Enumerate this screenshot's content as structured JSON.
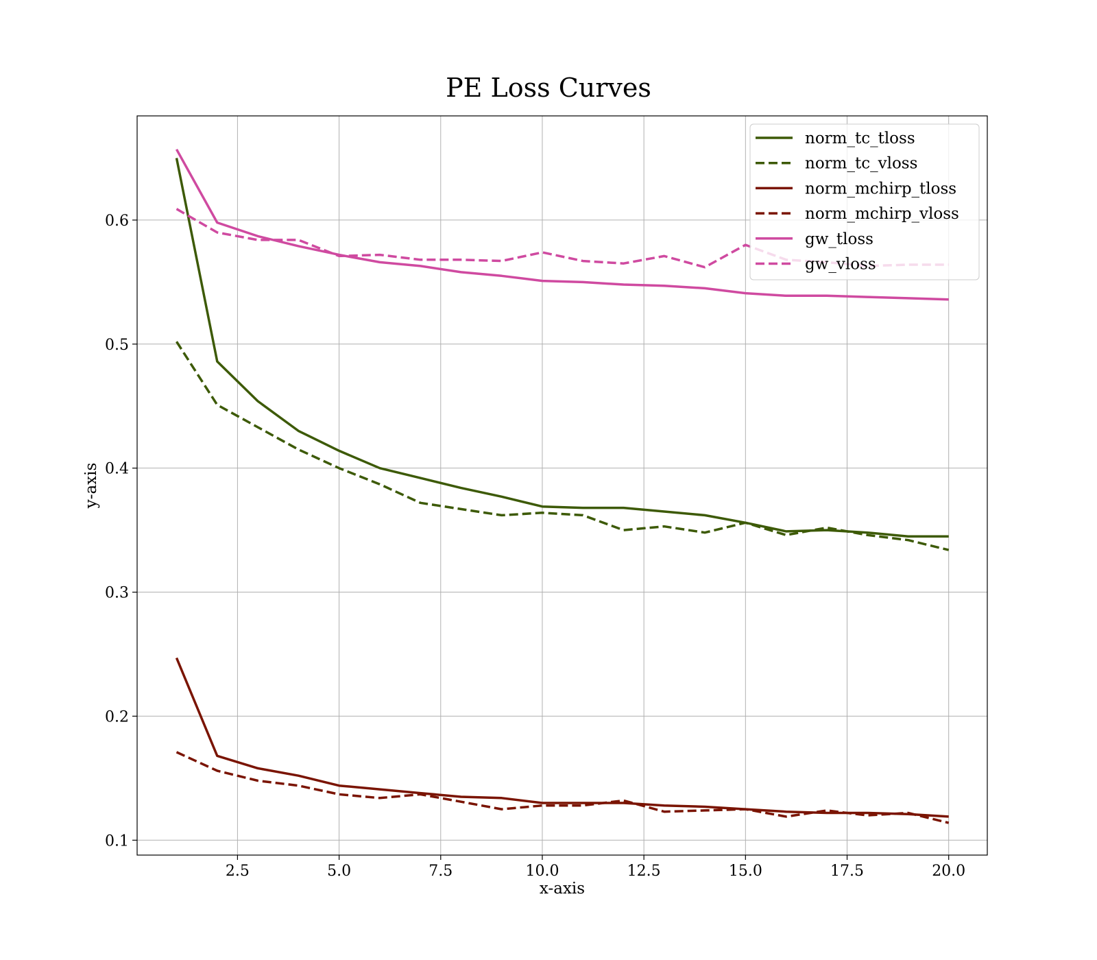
{
  "chart_data": {
    "type": "line",
    "title": "PE Loss Curves",
    "xlabel": "x-axis",
    "ylabel": "y-axis",
    "xlim": [
      0.03,
      20.95
    ],
    "ylim": [
      0.088,
      0.684
    ],
    "xticks": [
      2.5,
      5.0,
      7.5,
      10.0,
      12.5,
      15.0,
      17.5,
      20.0
    ],
    "xtick_labels": [
      "2.5",
      "5.0",
      "7.5",
      "10.0",
      "12.5",
      "15.0",
      "17.5",
      "20.0"
    ],
    "yticks": [
      0.1,
      0.2,
      0.3,
      0.4,
      0.5,
      0.6
    ],
    "ytick_labels": [
      "0.1",
      "0.2",
      "0.3",
      "0.4",
      "0.5",
      "0.6"
    ],
    "grid": true,
    "legend_position": "top-right",
    "x": [
      1,
      2,
      3,
      4,
      5,
      6,
      7,
      8,
      9,
      10,
      11,
      12,
      13,
      14,
      15,
      16,
      17,
      18,
      19,
      20
    ],
    "series": [
      {
        "name": "norm_tc_tloss",
        "color": "#3d5a07",
        "style": "solid",
        "values": [
          0.65,
          0.486,
          0.454,
          0.43,
          0.414,
          0.4,
          0.392,
          0.384,
          0.377,
          0.369,
          0.368,
          0.368,
          0.365,
          0.362,
          0.356,
          0.349,
          0.35,
          0.348,
          0.345,
          0.345
        ]
      },
      {
        "name": "norm_tc_vloss",
        "color": "#3d5a07",
        "style": "dashed",
        "values": [
          0.502,
          0.451,
          0.433,
          0.415,
          0.4,
          0.387,
          0.372,
          0.367,
          0.362,
          0.364,
          0.362,
          0.35,
          0.353,
          0.348,
          0.356,
          0.346,
          0.352,
          0.346,
          0.342,
          0.334
        ]
      },
      {
        "name": "norm_mchirp_tloss",
        "color": "#7a1402",
        "style": "solid",
        "values": [
          0.247,
          0.168,
          0.158,
          0.152,
          0.144,
          0.141,
          0.138,
          0.135,
          0.134,
          0.13,
          0.13,
          0.13,
          0.128,
          0.127,
          0.125,
          0.123,
          0.122,
          0.122,
          0.121,
          0.119
        ]
      },
      {
        "name": "norm_mchirp_vloss",
        "color": "#7a1402",
        "style": "dashed",
        "values": [
          0.171,
          0.156,
          0.148,
          0.144,
          0.137,
          0.134,
          0.137,
          0.131,
          0.125,
          0.128,
          0.128,
          0.132,
          0.123,
          0.124,
          0.125,
          0.119,
          0.124,
          0.12,
          0.122,
          0.114
        ]
      },
      {
        "name": "gw_tloss",
        "color": "#cf4aa0",
        "style": "solid",
        "values": [
          0.657,
          0.598,
          0.587,
          0.579,
          0.572,
          0.566,
          0.563,
          0.558,
          0.555,
          0.551,
          0.55,
          0.548,
          0.547,
          0.545,
          0.541,
          0.539,
          0.539,
          0.538,
          0.537,
          0.536
        ]
      },
      {
        "name": "gw_vloss",
        "color": "#cf4aa0",
        "style": "dashed",
        "values": [
          0.609,
          0.59,
          0.584,
          0.584,
          0.571,
          0.572,
          0.568,
          0.568,
          0.567,
          0.574,
          0.567,
          0.565,
          0.571,
          0.562,
          0.58,
          0.568,
          0.566,
          0.563,
          0.564,
          0.564
        ]
      }
    ]
  }
}
